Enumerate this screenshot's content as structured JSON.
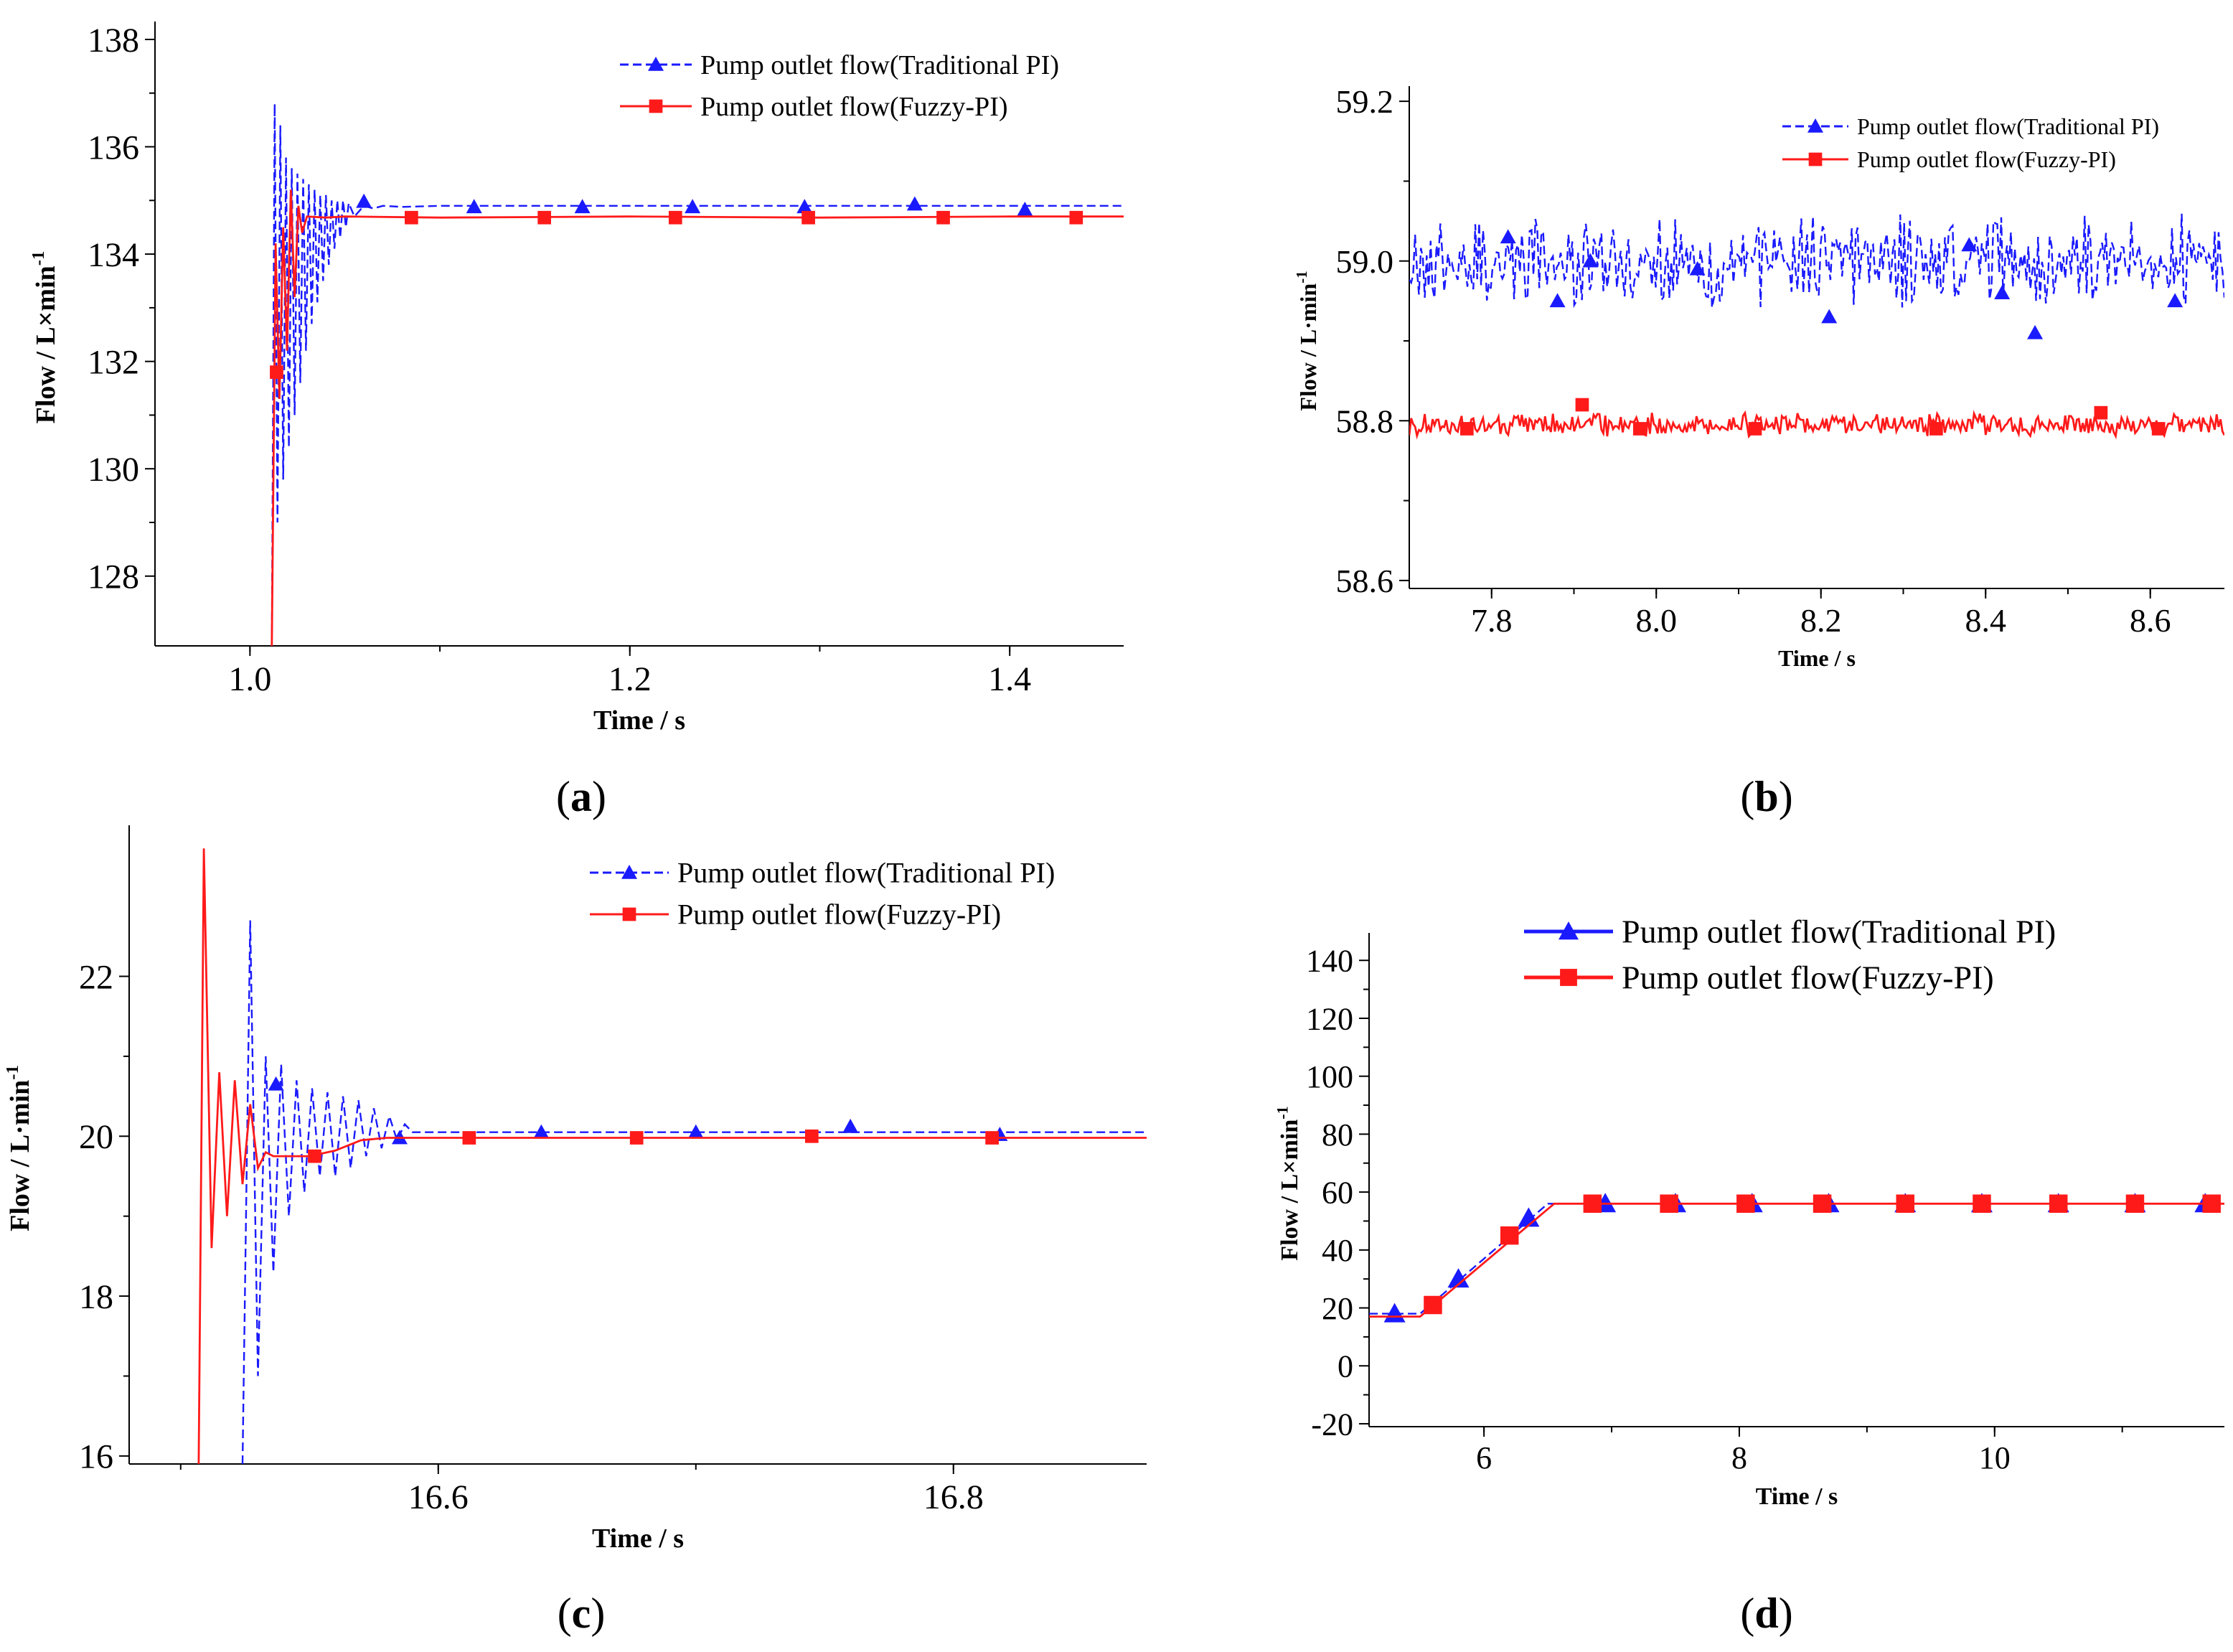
{
  "colors": {
    "traditional": "#1a1aff",
    "fuzzy": "#ff1a1a",
    "axis": "#000000"
  },
  "chart_data": [
    {
      "id": "a",
      "type": "line",
      "subfigure_label": "a",
      "xlabel": "Time / s",
      "ylabel": "Flow / L×min",
      "ylabel_sup": "-1",
      "xlim": [
        0.95,
        1.46
      ],
      "ylim": [
        126.7,
        138.2
      ],
      "xticks": [
        1.0,
        1.2,
        1.4
      ],
      "xtick_labels": [
        "1.0",
        "1.2",
        "1.4"
      ],
      "yticks": [
        128,
        130,
        132,
        134,
        136,
        138
      ],
      "ytick_labels": [
        "128",
        "130",
        "132",
        "134",
        "136",
        "138"
      ],
      "legend_position": "top-right",
      "series": [
        {
          "name": "Pump outlet flow(Traditional PI)",
          "style": "dashed",
          "marker": "triangle",
          "color": "#1a1aff",
          "x": [
            1.0115,
            1.013,
            1.0145,
            1.016,
            1.0175,
            1.019,
            1.0205,
            1.022,
            1.0235,
            1.025,
            1.0265,
            1.028,
            1.0295,
            1.031,
            1.0325,
            1.034,
            1.0355,
            1.037,
            1.0385,
            1.04,
            1.0415,
            1.043,
            1.0445,
            1.046,
            1.0475,
            1.049,
            1.0505,
            1.052,
            1.055,
            1.06,
            1.065,
            1.07,
            1.08,
            1.1,
            1.15,
            1.2,
            1.25,
            1.3,
            1.35,
            1.4,
            1.46
          ],
          "y": [
            126.7,
            136.8,
            129.0,
            136.4,
            129.8,
            135.8,
            130.4,
            135.6,
            131.0,
            135.5,
            131.6,
            135.4,
            132.2,
            135.3,
            132.7,
            135.2,
            133.1,
            135.1,
            133.5,
            135.1,
            133.8,
            135.0,
            134.1,
            135.0,
            134.3,
            135.0,
            134.5,
            134.95,
            134.7,
            134.9,
            134.85,
            134.9,
            134.88,
            134.9,
            134.9,
            134.9,
            134.9,
            134.9,
            134.9,
            134.9,
            134.9
          ],
          "markers_x": [
            1.06,
            1.118,
            1.175,
            1.233,
            1.292,
            1.35,
            1.408
          ],
          "markers_y": [
            134.98,
            134.88,
            134.88,
            134.88,
            134.88,
            134.93,
            134.83
          ]
        },
        {
          "name": "Pump outlet flow(Fuzzy-PI)",
          "style": "solid",
          "marker": "square",
          "color": "#ff1a1a",
          "x": [
            1.0115,
            1.0135,
            1.0155,
            1.0175,
            1.0195,
            1.0215,
            1.0235,
            1.0255,
            1.0275,
            1.03,
            1.04,
            1.05,
            1.1,
            1.2,
            1.3,
            1.4,
            1.46
          ],
          "y": [
            126.7,
            134.2,
            131.3,
            134.5,
            132.2,
            135.2,
            133.2,
            134.9,
            134.4,
            134.7,
            134.68,
            134.7,
            134.68,
            134.7,
            134.68,
            134.7,
            134.7
          ],
          "markers_x": [
            1.014,
            1.085,
            1.155,
            1.224,
            1.294,
            1.365,
            1.435
          ],
          "markers_y": [
            131.8,
            134.68,
            134.68,
            134.68,
            134.68,
            134.68,
            134.68
          ]
        }
      ]
    },
    {
      "id": "b",
      "type": "line",
      "subfigure_label": "b",
      "xlabel": "Time / s",
      "ylabel": "Flow / L·min",
      "ylabel_sup": "-1",
      "xlim": [
        7.7,
        8.69
      ],
      "ylim": [
        58.59,
        59.21
      ],
      "xticks": [
        7.8,
        8.0,
        8.2,
        8.4,
        8.6
      ],
      "xtick_labels": [
        "7.8",
        "8.0",
        "8.2",
        "8.4",
        "8.6"
      ],
      "yticks": [
        58.6,
        58.8,
        59.0,
        59.2
      ],
      "ytick_labels": [
        "58.6",
        "58.8",
        "59.0",
        "59.2"
      ],
      "legend_position": "top-right",
      "series": [
        {
          "name": "Pump outlet flow(Traditional PI)",
          "style": "dashed",
          "marker": "triangle",
          "color": "#1a1aff",
          "mean": 59.0,
          "noise_amplitude": 0.06,
          "markers_x": [
            7.82,
            7.88,
            7.92,
            8.05,
            8.21,
            8.38,
            8.42,
            8.46,
            8.63
          ],
          "markers_y": [
            59.03,
            58.95,
            59.0,
            58.99,
            58.93,
            59.02,
            58.96,
            58.91,
            58.95
          ]
        },
        {
          "name": "Pump outlet flow(Fuzzy-PI)",
          "style": "solid",
          "marker": "square",
          "color": "#ff1a1a",
          "mean": 58.795,
          "noise_amplitude": 0.015,
          "markers_x": [
            7.77,
            7.91,
            7.98,
            8.12,
            8.34,
            8.54,
            8.61
          ],
          "markers_y": [
            58.79,
            58.82,
            58.79,
            58.79,
            58.79,
            58.81,
            58.79
          ]
        }
      ]
    },
    {
      "id": "c",
      "type": "line",
      "subfigure_label": "c",
      "xlabel": "Time / s",
      "ylabel": "Flow / L·min",
      "ylabel_sup": "-1",
      "xlim": [
        16.48,
        16.875
      ],
      "ylim": [
        15.9,
        23.8
      ],
      "xticks": [
        16.6,
        16.8
      ],
      "xtick_labels": [
        "16.6",
        "16.8"
      ],
      "yticks": [
        16,
        18,
        20,
        22
      ],
      "ytick_labels": [
        "16",
        "18",
        "20",
        "22"
      ],
      "legend_position": "top-right",
      "series": [
        {
          "name": "Pump outlet flow(Traditional PI)",
          "style": "dashed",
          "marker": "triangle",
          "color": "#1a1aff",
          "x": [
            16.524,
            16.527,
            16.53,
            16.533,
            16.536,
            16.539,
            16.542,
            16.545,
            16.548,
            16.551,
            16.554,
            16.557,
            16.56,
            16.563,
            16.566,
            16.569,
            16.572,
            16.575,
            16.578,
            16.581,
            16.584,
            16.587,
            16.59,
            16.6,
            16.65,
            16.7,
            16.75,
            16.8,
            16.875
          ],
          "y": [
            15.9,
            22.7,
            17.0,
            21.0,
            18.3,
            20.9,
            19.0,
            20.7,
            19.3,
            20.6,
            19.5,
            20.55,
            19.5,
            20.5,
            19.6,
            20.45,
            19.75,
            20.35,
            19.85,
            20.25,
            19.95,
            20.15,
            20.05,
            20.05,
            20.05,
            20.05,
            20.05,
            20.05,
            20.05
          ],
          "markers_x": [
            16.537,
            16.585,
            16.64,
            16.7,
            16.76,
            16.818
          ],
          "markers_y": [
            20.65,
            19.98,
            20.05,
            20.05,
            20.12,
            20.02
          ]
        },
        {
          "name": "Pump outlet flow(Fuzzy-PI)",
          "style": "solid",
          "marker": "square",
          "color": "#ff1a1a",
          "x": [
            16.507,
            16.509,
            16.512,
            16.515,
            16.518,
            16.521,
            16.524,
            16.527,
            16.53,
            16.533,
            16.536,
            16.54,
            16.55,
            16.56,
            16.57,
            16.58,
            16.6,
            16.7,
            16.8,
            16.875
          ],
          "y": [
            15.9,
            23.6,
            18.6,
            20.8,
            19.0,
            20.7,
            19.4,
            20.4,
            19.6,
            19.8,
            19.75,
            19.75,
            19.75,
            19.82,
            19.95,
            19.98,
            19.98,
            19.98,
            19.98,
            19.98
          ],
          "markers_x": [
            16.552,
            16.612,
            16.677,
            16.745,
            16.815
          ],
          "markers_y": [
            19.75,
            19.98,
            19.98,
            20.0,
            19.98
          ]
        }
      ]
    },
    {
      "id": "d",
      "type": "line",
      "subfigure_label": "d",
      "xlabel": "Time / s",
      "ylabel": "Flow / L×min",
      "ylabel_sup": "-1",
      "xlim": [
        5.1,
        11.8
      ],
      "ylim": [
        -21,
        147
      ],
      "xticks": [
        6,
        8,
        10
      ],
      "xtick_labels": [
        "6",
        "8",
        "10"
      ],
      "yticks": [
        -20,
        0,
        20,
        40,
        60,
        80,
        100,
        120,
        140
      ],
      "ytick_labels": [
        "-20",
        "0",
        "20",
        "40",
        "60",
        "80",
        "100",
        "120",
        "140"
      ],
      "legend_position": "top-right",
      "series": [
        {
          "name": "Pump outlet flow(Traditional PI)",
          "style": "dashed",
          "marker": "triangle",
          "color": "#1a1aff",
          "x": [
            5.1,
            5.5,
            6.5,
            11.8
          ],
          "y": [
            18,
            18,
            56,
            56
          ],
          "markers_x": [
            5.3,
            5.8,
            6.35,
            6.95,
            7.5,
            8.1,
            8.7,
            9.3,
            9.9,
            10.5,
            11.1,
            11.65
          ],
          "markers_y": [
            18,
            30,
            51,
            56,
            56,
            56,
            56,
            56,
            56,
            56,
            56,
            56
          ]
        },
        {
          "name": "Pump outlet flow(Fuzzy-PI)",
          "style": "solid",
          "marker": "square",
          "color": "#ff1a1a",
          "x": [
            5.1,
            5.5,
            6.55,
            11.8
          ],
          "y": [
            17,
            17,
            56,
            56
          ],
          "markers_x": [
            5.6,
            6.2,
            6.85,
            7.45,
            8.05,
            8.65,
            9.3,
            9.9,
            10.5,
            11.1,
            11.7
          ],
          "markers_y": [
            21,
            45,
            56,
            56,
            56,
            56,
            56,
            56,
            56,
            56,
            56
          ]
        }
      ]
    }
  ]
}
